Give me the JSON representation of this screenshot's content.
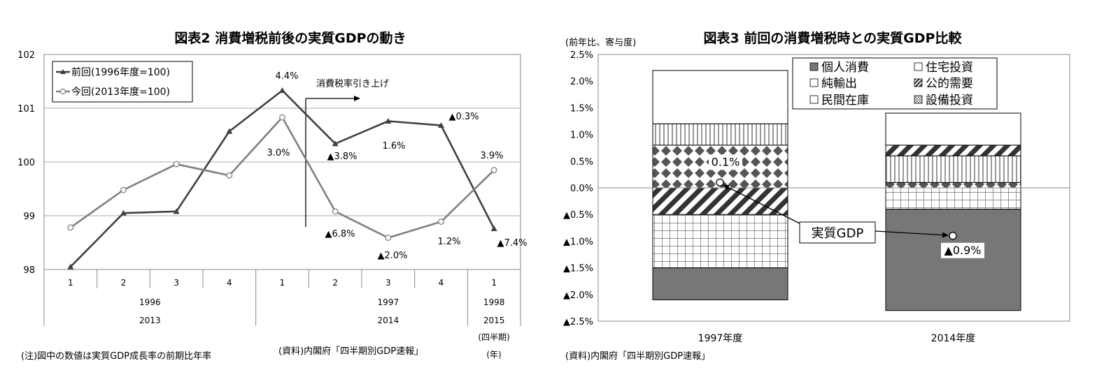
{
  "chart_data": [
    {
      "type": "line",
      "title": "図表2 消費増税前後の実質GDPの動き",
      "ylim": [
        98,
        102
      ],
      "yticks": [
        "102",
        "101",
        "100",
        "99",
        "98"
      ],
      "quarters": [
        "1",
        "2",
        "3",
        "4",
        "1",
        "2",
        "3",
        "4",
        "1"
      ],
      "years_row1": [
        "1996",
        "1997",
        "1998"
      ],
      "years_row2": [
        "2013",
        "2014",
        "2015"
      ],
      "period_label_1": "(四半期)",
      "period_label_2": "(年)",
      "series": [
        {
          "name": "前回(1996年度=100)",
          "values": [
            98.05,
            99.05,
            99.08,
            100.57,
            101.33,
            100.34,
            100.76,
            100.68,
            98.76
          ],
          "color": "#404040",
          "marker": "triangle"
        },
        {
          "name": "今回(2013年度=100)",
          "values": [
            98.78,
            99.48,
            99.96,
            99.75,
            100.83,
            99.08,
            98.59,
            98.89,
            99.85
          ],
          "color": "#808080",
          "marker": "circle"
        }
      ],
      "annotations": [
        "4.4%",
        "3.0%",
        "▲3.8%",
        "1.6%",
        "▲0.3%",
        "3.9%",
        "▲6.8%",
        "▲2.0%",
        "1.2%",
        "▲7.4%"
      ],
      "event_label": "消費税率引き上げ",
      "note": "(注)図中の数値は実質GDP成長率の前期比年率",
      "source": "(資料)内閣府「四半期別GDP速報」"
    },
    {
      "type": "bar",
      "stacked": true,
      "title": "図表3 前回の消費増税時との実質GDP比較",
      "ylabel": "(前年比、寄与度)",
      "ylim": [
        -2.5,
        2.5
      ],
      "yticks": [
        "2.5%",
        "2.0%",
        "1.5%",
        "1.0%",
        "0.5%",
        "0.0%",
        "▲0.5%",
        "▲1.0%",
        "▲1.5%",
        "▲2.0%",
        "▲2.5%"
      ],
      "categories": [
        "1997年度",
        "2014年度"
      ],
      "legend": [
        "個人消費",
        "住宅投資",
        "純輸出",
        "公的需要",
        "民間在庫",
        "設備投資"
      ],
      "segments": [
        [
          {
            "name": "民間在庫",
            "from": -1.5,
            "to": -0.5,
            "pattern": "grid"
          },
          {
            "name": "個人消費",
            "from": -2.1,
            "to": -1.5,
            "pattern": "solid"
          },
          {
            "name": "公的需要",
            "from": -0.5,
            "to": 0.0,
            "pattern": "diag"
          },
          {
            "name": "住宅投資",
            "from": 0.0,
            "to": 0.8,
            "pattern": "diamond"
          },
          {
            "name": "設備投資",
            "from": 0.8,
            "to": 1.2,
            "pattern": "vstripe"
          },
          {
            "name": "純輸出",
            "from": 1.2,
            "to": 2.2,
            "pattern": "white"
          }
        ],
        [
          {
            "name": "個人消費",
            "from": -2.3,
            "to": -0.4,
            "pattern": "solid"
          },
          {
            "name": "民間在庫",
            "from": -0.4,
            "to": 0.0,
            "pattern": "grid"
          },
          {
            "name": "住宅投資",
            "from": 0.0,
            "to": 0.1,
            "pattern": "diamond"
          },
          {
            "name": "設備投資",
            "from": 0.1,
            "to": 0.6,
            "pattern": "vstripe"
          },
          {
            "name": "公的需要",
            "from": 0.6,
            "to": 0.8,
            "pattern": "diag"
          },
          {
            "name": "純輸出",
            "from": 0.8,
            "to": 1.4,
            "pattern": "white"
          }
        ]
      ],
      "gdp_label": "実質GDP",
      "gdp": [
        {
          "value": 0.1,
          "label": "0.1%"
        },
        {
          "value": -0.9,
          "label": "▲0.9%"
        }
      ],
      "source": "(資料)内閣府「四半期別GDP速報」"
    }
  ]
}
